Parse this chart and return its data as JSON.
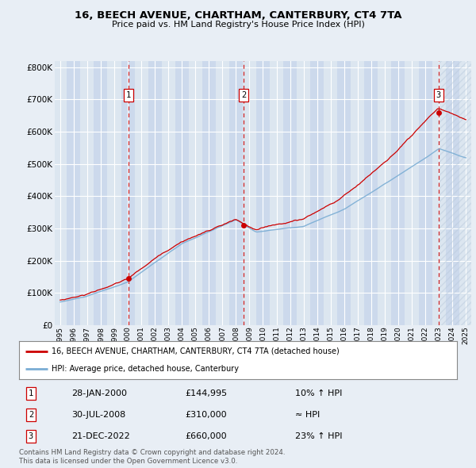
{
  "title": "16, BEECH AVENUE, CHARTHAM, CANTERBURY, CT4 7TA",
  "subtitle": "Price paid vs. HM Land Registry's House Price Index (HPI)",
  "background_color": "#e8eef5",
  "plot_bg_color": "#dce6f0",
  "plot_bg_alt_color": "#ccd9ec",
  "grid_color": "#ffffff",
  "hpi_line_color": "#7aadd4",
  "price_line_color": "#cc0000",
  "dashed_line_color": "#cc0000",
  "ylabel_ticks": [
    "£0",
    "£100K",
    "£200K",
    "£300K",
    "£400K",
    "£500K",
    "£600K",
    "£700K",
    "£800K"
  ],
  "ytick_values": [
    0,
    100000,
    200000,
    300000,
    400000,
    500000,
    600000,
    700000,
    800000
  ],
  "ylim": [
    0,
    820000
  ],
  "xlim_start": 1994.6,
  "xlim_end": 2025.4,
  "transactions": [
    {
      "label": "1",
      "year": 2000.07,
      "price": 144995
    },
    {
      "label": "2",
      "year": 2008.58,
      "price": 310000
    },
    {
      "label": "3",
      "year": 2022.97,
      "price": 660000
    }
  ],
  "legend_entries": [
    "16, BEECH AVENUE, CHARTHAM, CANTERBURY, CT4 7TA (detached house)",
    "HPI: Average price, detached house, Canterbury"
  ],
  "footer_lines": [
    "Contains HM Land Registry data © Crown copyright and database right 2024.",
    "This data is licensed under the Open Government Licence v3.0."
  ],
  "table_rows": [
    [
      "1",
      "28-JAN-2000",
      "£144,995",
      "10% ↑ HPI"
    ],
    [
      "2",
      "30-JUL-2008",
      "£310,000",
      "≈ HPI"
    ],
    [
      "3",
      "21-DEC-2022",
      "£660,000",
      "23% ↑ HPI"
    ]
  ],
  "hpi_seed": 10,
  "price_seed": 20
}
